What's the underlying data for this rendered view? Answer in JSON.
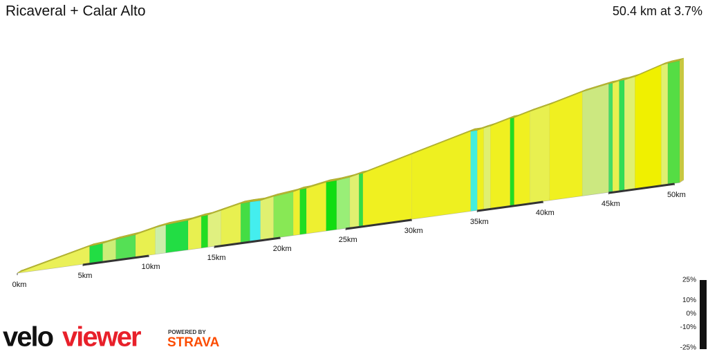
{
  "chart_data": {
    "type": "profile3d",
    "title": "Ricaveral + Calar Alto",
    "subtitle": "50.4 km at 3.7%",
    "xlim": [
      0,
      50.4
    ],
    "xticks": [
      {
        "value": 0,
        "label": "0km"
      },
      {
        "value": 5,
        "label": "5km"
      },
      {
        "value": 10,
        "label": "10km"
      },
      {
        "value": 15,
        "label": "15km"
      },
      {
        "value": 20,
        "label": "20km"
      },
      {
        "value": 25,
        "label": "25km"
      },
      {
        "value": 30,
        "label": "30km"
      },
      {
        "value": 35,
        "label": "35km"
      },
      {
        "value": 40,
        "label": "40km"
      },
      {
        "value": 45,
        "label": "45km"
      },
      {
        "value": 50,
        "label": "50km"
      }
    ],
    "segments": [
      {
        "start": 0,
        "end": 5.5,
        "gradient": 5.5,
        "color": "#eaf058"
      },
      {
        "start": 5.5,
        "end": 6.5,
        "gradient": 2,
        "color": "#22dd44"
      },
      {
        "start": 6.5,
        "end": 7.5,
        "gradient": 4,
        "color": "#ccee77"
      },
      {
        "start": 7.5,
        "end": 9,
        "gradient": 2.5,
        "color": "#55e055"
      },
      {
        "start": 9,
        "end": 10.5,
        "gradient": 5,
        "color": "#e8f050"
      },
      {
        "start": 10.5,
        "end": 11.3,
        "gradient": 3.5,
        "color": "#cceeaa"
      },
      {
        "start": 11.3,
        "end": 13,
        "gradient": 1.5,
        "color": "#22dd44"
      },
      {
        "start": 13,
        "end": 14,
        "gradient": 4,
        "color": "#e8f050"
      },
      {
        "start": 14,
        "end": 14.5,
        "gradient": 1.5,
        "color": "#22dd22"
      },
      {
        "start": 14.5,
        "end": 15.5,
        "gradient": 5,
        "color": "#e0f080"
      },
      {
        "start": 15.5,
        "end": 17,
        "gradient": 5,
        "color": "#e8f050"
      },
      {
        "start": 17,
        "end": 17.7,
        "gradient": 1,
        "color": "#44dd44"
      },
      {
        "start": 17.7,
        "end": 18.5,
        "gradient": 0,
        "color": "#44eeee"
      },
      {
        "start": 18.5,
        "end": 19.5,
        "gradient": 4,
        "color": "#e0f070"
      },
      {
        "start": 19.5,
        "end": 21,
        "gradient": 2.5,
        "color": "#88e855"
      },
      {
        "start": 21,
        "end": 21.5,
        "gradient": 5,
        "color": "#eef030"
      },
      {
        "start": 21.5,
        "end": 22,
        "gradient": 1,
        "color": "#22dd22"
      },
      {
        "start": 22,
        "end": 23.5,
        "gradient": 4,
        "color": "#eef030"
      },
      {
        "start": 23.5,
        "end": 24.3,
        "gradient": 1,
        "color": "#11dd11"
      },
      {
        "start": 24.3,
        "end": 25.3,
        "gradient": 2.5,
        "color": "#99ee77"
      },
      {
        "start": 25.3,
        "end": 26,
        "gradient": 5,
        "color": "#e0f070"
      },
      {
        "start": 26,
        "end": 26.3,
        "gradient": 1.5,
        "color": "#33dd44"
      },
      {
        "start": 26.3,
        "end": 30,
        "gradient": 6,
        "color": "#f0f020"
      },
      {
        "start": 30,
        "end": 34.5,
        "gradient": 6,
        "color": "#eef020"
      },
      {
        "start": 34.5,
        "end": 35,
        "gradient": 0,
        "color": "#44eedd"
      },
      {
        "start": 35,
        "end": 35.5,
        "gradient": 5,
        "color": "#eef020"
      },
      {
        "start": 35.5,
        "end": 36,
        "gradient": 4,
        "color": "#e0f070"
      },
      {
        "start": 36,
        "end": 37.5,
        "gradient": 6,
        "color": "#f0f020"
      },
      {
        "start": 37.5,
        "end": 37.8,
        "gradient": 1,
        "color": "#22dd22"
      },
      {
        "start": 37.8,
        "end": 39,
        "gradient": 6,
        "color": "#f0f020"
      },
      {
        "start": 39,
        "end": 40.5,
        "gradient": 5,
        "color": "#e8f050"
      },
      {
        "start": 40.5,
        "end": 43,
        "gradient": 6,
        "color": "#f0f020"
      },
      {
        "start": 43,
        "end": 45,
        "gradient": 4,
        "color": "#cce880"
      },
      {
        "start": 45,
        "end": 45.3,
        "gradient": 1,
        "color": "#44dd66"
      },
      {
        "start": 45.3,
        "end": 45.8,
        "gradient": 5,
        "color": "#e8f050"
      },
      {
        "start": 45.8,
        "end": 46.2,
        "gradient": 1,
        "color": "#33dd55"
      },
      {
        "start": 46.2,
        "end": 47,
        "gradient": 4,
        "color": "#e0f070"
      },
      {
        "start": 47,
        "end": 49,
        "gradient": 7,
        "color": "#f0f000"
      },
      {
        "start": 49,
        "end": 49.5,
        "gradient": 4,
        "color": "#e0f070"
      },
      {
        "start": 49.5,
        "end": 50.4,
        "gradient": 2,
        "color": "#55dd44"
      }
    ],
    "gradient_lim": [
      -25,
      25
    ],
    "gradient_ticks": [
      {
        "value": 25,
        "label": "25%"
      },
      {
        "value": 10,
        "label": "10%"
      },
      {
        "value": 0,
        "label": "0%"
      },
      {
        "value": -10,
        "label": "-10%"
      },
      {
        "value": -25,
        "label": "-25%"
      }
    ]
  },
  "branding": {
    "logo_left": "velo",
    "logo_right": "viewer",
    "powered_by": "POWERED BY",
    "strava": "STRAVA"
  }
}
